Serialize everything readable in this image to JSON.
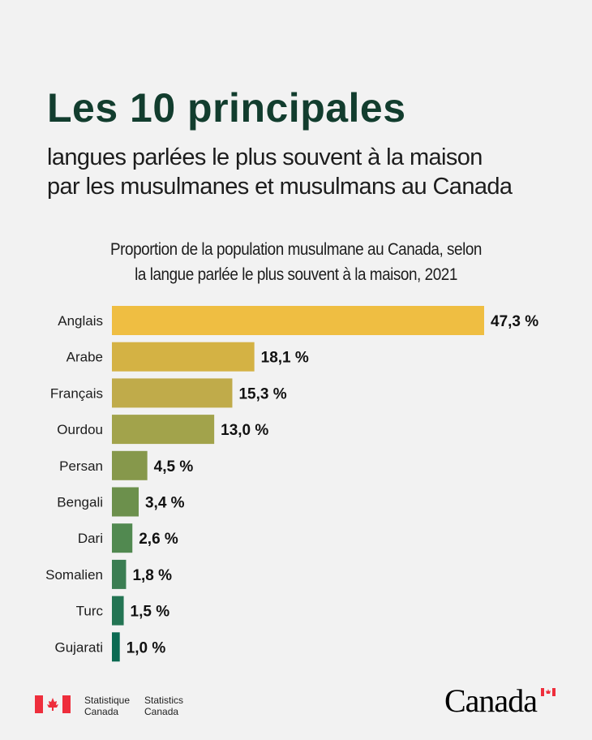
{
  "header": {
    "title": "Les 10 principales",
    "subtitle_line1": "langues parlées le plus souvent à la maison",
    "subtitle_line2": "par les musulmanes et musulmans au Canada"
  },
  "chart_data": {
    "type": "bar",
    "orientation": "horizontal",
    "title_line1": "Proportion de la population musulmane au Canada, selon",
    "title_line2": "la langue parlée le plus souvent à la maison, 2021",
    "categories": [
      "Anglais",
      "Arabe",
      "Français",
      "Ourdou",
      "Persan",
      "Bengali",
      "Dari",
      "Somalien",
      "Turc",
      "Gujarati"
    ],
    "values": [
      47.3,
      18.1,
      15.3,
      13.0,
      4.5,
      3.4,
      2.6,
      1.8,
      1.5,
      1.0
    ],
    "value_labels": [
      "47,3 %",
      "18,1 %",
      "15,3 %",
      "13,0 %",
      "4,5 %",
      "3,4 %",
      "2,6 %",
      "1,8 %",
      "1,5 %",
      "1,0 %"
    ],
    "colors": [
      "#efbe42",
      "#d4b244",
      "#c0ab4a",
      "#a2a34b",
      "#86984b",
      "#6c904c",
      "#518950",
      "#3b7d52",
      "#237453",
      "#0b6a52"
    ],
    "grid": false,
    "xlim": [
      0,
      47.3
    ]
  },
  "footer": {
    "fip_fr_line1": "Statistique",
    "fip_fr_line2": "Canada",
    "fip_en_line1": "Statistics",
    "fip_en_line2": "Canada",
    "wordmark": "Canada",
    "flag_color": "#ee2e3c"
  }
}
